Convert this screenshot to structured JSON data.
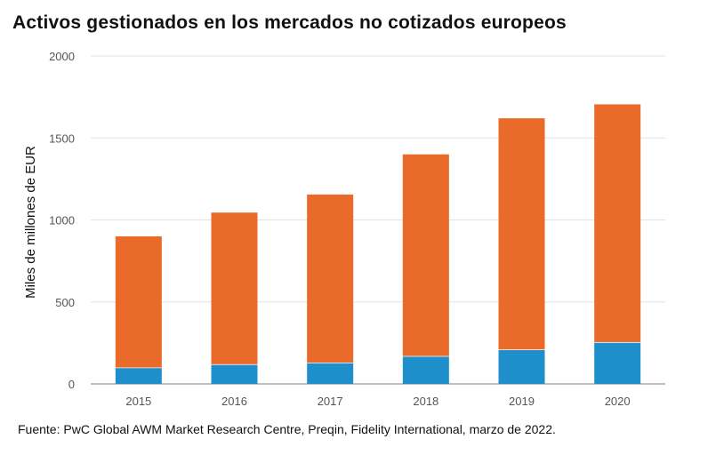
{
  "chart_data": {
    "type": "bar",
    "stacked": true,
    "title": "Activos gestionados en los mercados no cotizados europeos",
    "ylabel": "Miles de millones de EUR",
    "xlabel": "",
    "categories": [
      "2015",
      "2016",
      "2017",
      "2018",
      "2019",
      "2020"
    ],
    "series": [
      {
        "color": "#1f8fcc",
        "values": [
          100,
          120,
          130,
          170,
          210,
          255
        ]
      },
      {
        "color": "#ea6a2a",
        "values": [
          800,
          925,
          1025,
          1230,
          1410,
          1450
        ]
      }
    ],
    "ylim": [
      0,
      2000
    ],
    "yticks": [
      "0",
      "500",
      "1000",
      "1500",
      "2000"
    ],
    "grid": true,
    "legend": "none",
    "source": "Fuente: PwC Global AWM Market Research Centre, Preqin, Fidelity International, marzo de 2022."
  }
}
